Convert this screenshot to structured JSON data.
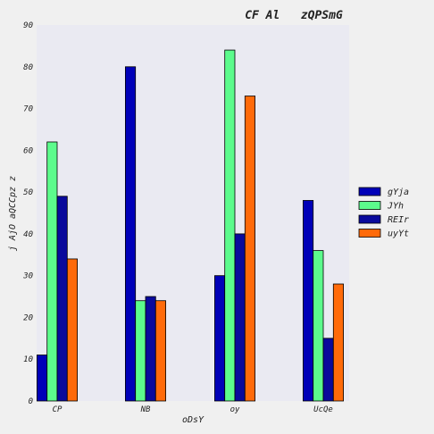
{
  "chart_data": {
    "type": "bar",
    "title": "CF Al   zQPSmG",
    "xlabel": "oDsY",
    "ylabel": "j AjO aQCCpz z",
    "categories": [
      "CP",
      "NB",
      "oy",
      "UcQe"
    ],
    "ylim": [
      0,
      90
    ],
    "yticks": [
      0,
      10,
      20,
      30,
      40,
      50,
      60,
      70,
      80,
      90
    ],
    "grid": false,
    "legend_position": "right",
    "series": [
      {
        "name": "gYja",
        "color": "#0000b8",
        "values": [
          11,
          80,
          30,
          48
        ]
      },
      {
        "name": "JYh",
        "color": "#5cfb8c",
        "values": [
          62,
          24,
          84,
          36
        ]
      },
      {
        "name": "REIr",
        "color": "#0a0a9c",
        "values": [
          49,
          25,
          40,
          15
        ]
      },
      {
        "name": "uyYt",
        "color": "#ff6a0a",
        "values": [
          34,
          24,
          73,
          28
        ]
      }
    ]
  }
}
